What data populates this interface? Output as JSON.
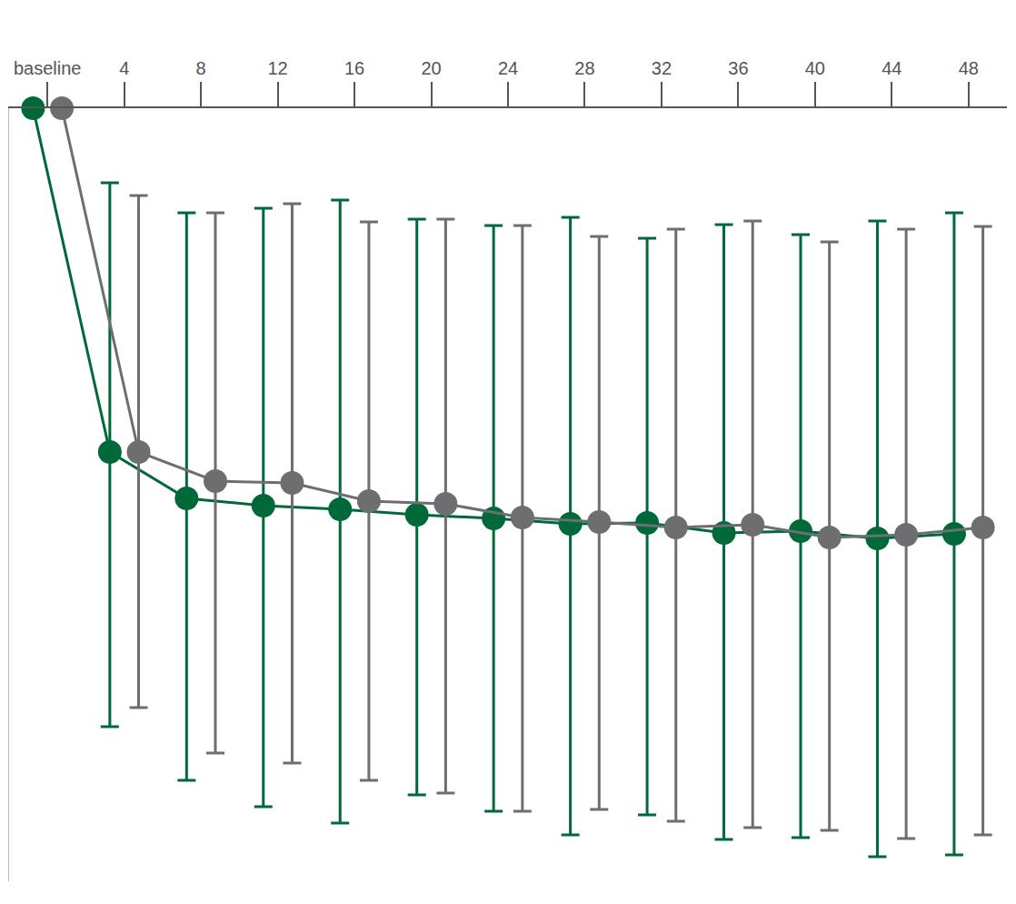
{
  "chart_data": {
    "type": "line",
    "categories": [
      "baseline",
      "4",
      "8",
      "12",
      "16",
      "20",
      "24",
      "28",
      "32",
      "36",
      "40",
      "44",
      "48"
    ],
    "series": [
      {
        "color": "#00693a",
        "marker": "circle",
        "values": [
          0,
          -37.8,
          -42.9,
          -43.7,
          -44.1,
          -44.7,
          -45.1,
          -45.7,
          -45.6,
          -46.7,
          -46.5,
          -47.3,
          -46.8
        ],
        "error_plus": [
          null,
          29.6,
          31.4,
          32.7,
          34.0,
          32.5,
          32.2,
          33.7,
          31.3,
          33.9,
          32.6,
          34.9,
          35.3
        ],
        "error_minus": [
          null,
          30.2,
          31.0,
          33.1,
          34.5,
          30.8,
          32.2,
          34.2,
          32.1,
          33.7,
          33.7,
          35.0,
          35.3
        ]
      },
      {
        "color": "#6d6e70",
        "marker": "circle",
        "values": [
          0,
          -37.8,
          -41.0,
          -41.2,
          -43.2,
          -43.5,
          -45.0,
          -45.5,
          -46.1,
          -45.8,
          -47.2,
          -46.9,
          -46.1
        ],
        "error_plus": [
          null,
          28.2,
          29.5,
          30.7,
          30.7,
          31.3,
          32.1,
          31.4,
          32.8,
          33.4,
          32.5,
          33.6,
          33.1
        ],
        "error_minus": [
          null,
          28.1,
          29.9,
          30.8,
          30.7,
          31.8,
          32.3,
          31.6,
          32.3,
          33.3,
          32.2,
          33.4,
          33.8
        ]
      }
    ],
    "ylim": [
      -85,
      0
    ],
    "yticks": [],
    "tick_labels": "x",
    "grid": false
  }
}
